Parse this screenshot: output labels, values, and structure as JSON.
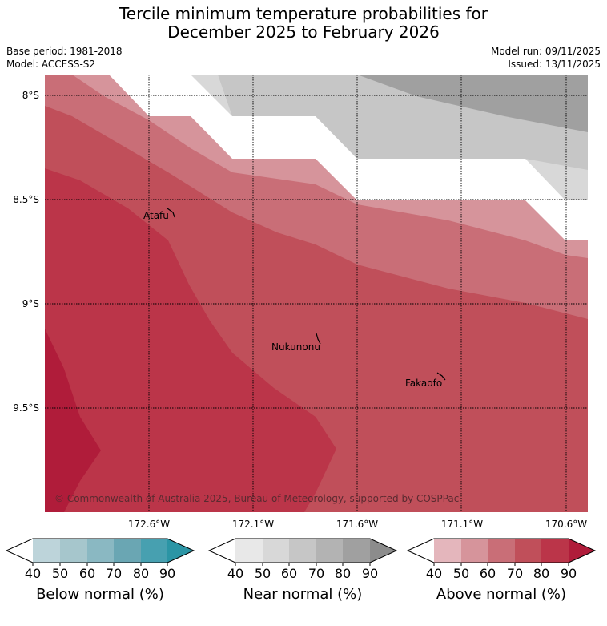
{
  "header": {
    "title_line1": "Tercile minimum temperature probabilities for",
    "title_line2": "December 2025 to February 2026",
    "base_period": "Base period: 1981-2018",
    "model": "Model: ACCESS-S2",
    "model_run": "Model run: 09/11/2025",
    "issued": "Issued: 13/11/2025"
  },
  "map": {
    "lat_ticks": [
      "8°S",
      "8.5°S",
      "9°S",
      "9.5°S"
    ],
    "lon_ticks": [
      "172.6°W",
      "172.1°W",
      "171.6°W",
      "171.1°W",
      "170.6°W"
    ],
    "places": [
      {
        "name": "Atafu"
      },
      {
        "name": "Nukunonu"
      },
      {
        "name": "Fakaofo"
      }
    ],
    "copyright": "© Commonwealth of Australia 2025, Bureau of Meteorology, supported by COSPPac"
  },
  "colorbars": [
    {
      "label": "Below normal (%)",
      "ticks": [
        "40",
        "50",
        "60",
        "70",
        "80",
        "90"
      ],
      "colors": [
        "#bdd4da",
        "#a6c6cc",
        "#8ab8c2",
        "#6aa6b3",
        "#47a0b0",
        "#2b95a5"
      ]
    },
    {
      "label": "Near normal (%)",
      "ticks": [
        "40",
        "50",
        "60",
        "70",
        "80",
        "90"
      ],
      "colors": [
        "#e8e8e8",
        "#d8d8d8",
        "#c6c6c6",
        "#b3b3b3",
        "#a0a0a0",
        "#8c8c8c"
      ]
    },
    {
      "label": "Above normal (%)",
      "ticks": [
        "40",
        "50",
        "60",
        "70",
        "80",
        "90"
      ],
      "colors": [
        "#e4b6bc",
        "#d6949b",
        "#c96e77",
        "#c04f5a",
        "#bb3549",
        "#b01c3a"
      ]
    }
  ],
  "colors": {
    "above_40": "#d6949b",
    "above_50": "#c96e77",
    "above_60": "#c04f5a",
    "above_70": "#bb3549",
    "above_80": "#b01c3a",
    "near_40": "#d8d8d8",
    "near_50": "#c6c6c6",
    "near_60": "#a0a0a0"
  }
}
